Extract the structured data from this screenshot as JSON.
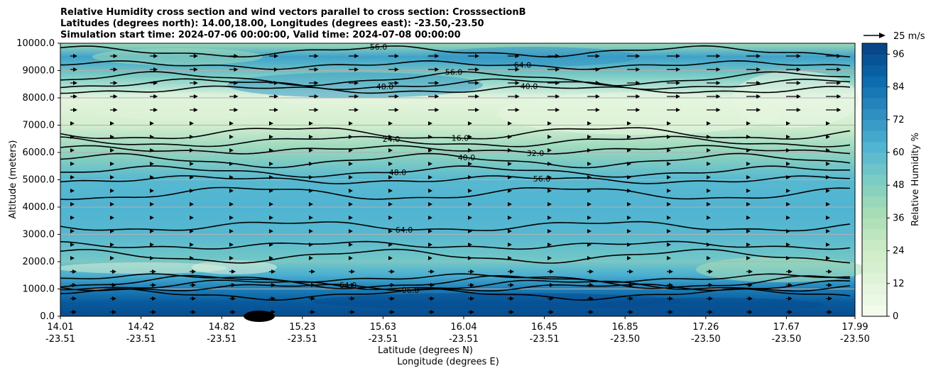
{
  "chart_data": {
    "type": "contour",
    "title_lines": [
      "Relative Humidity cross section and wind vectors parallel to cross section: CrosssectionB",
      "Latitudes (degrees north): 14.00,18.00, Longitudes (degrees east): -23.50,-23.50",
      "Simulation start time: 2024-07-06 00:00:00, Valid time: 2024-07-08 00:00:00"
    ],
    "ylabel": "Altitude (meters)",
    "xlabel_lat": "Latitude (degrees N)",
    "xlabel_lon": "Longitude (degrees E)",
    "ylim": [
      0,
      10000
    ],
    "xlim": [
      14.01,
      17.99
    ],
    "yticks": [
      "0.0",
      "1000.0",
      "2000.0",
      "3000.0",
      "4000.0",
      "5000.0",
      "6000.0",
      "7000.0",
      "8000.0",
      "9000.0",
      "10000.0"
    ],
    "xticks_lat": [
      "14.01",
      "14.42",
      "14.82",
      "15.23",
      "15.63",
      "16.04",
      "16.45",
      "16.85",
      "17.26",
      "17.67",
      "17.99"
    ],
    "xticks_lon": [
      "-23.51",
      "-23.51",
      "-23.51",
      "-23.51",
      "-23.51",
      "-23.51",
      "-23.51",
      "-23.50",
      "-23.50",
      "-23.50",
      "-23.50"
    ],
    "colorbar": {
      "label": "Relative Humidity %",
      "range": [
        0,
        100
      ],
      "ticks": [
        "0",
        "12",
        "24",
        "36",
        "48",
        "60",
        "72",
        "84",
        "96"
      ],
      "colormap": [
        "#f7fcf0",
        "#e0f3db",
        "#ccebc5",
        "#a8ddb5",
        "#7bccc4",
        "#4eb3d3",
        "#2b8cbe",
        "#0868ac",
        "#084081"
      ]
    },
    "quiver_key": "25 m/s",
    "humidity_profile": [
      {
        "altitude": 0,
        "rh": 96
      },
      {
        "altitude": 500,
        "rh": 92
      },
      {
        "altitude": 1000,
        "rh": 80
      },
      {
        "altitude": 1500,
        "rh": 64
      },
      {
        "altitude": 2000,
        "rh": 52
      },
      {
        "altitude": 3000,
        "rh": 60
      },
      {
        "altitude": 4000,
        "rh": 62
      },
      {
        "altitude": 5000,
        "rh": 60
      },
      {
        "altitude": 6000,
        "rh": 44
      },
      {
        "altitude": 7000,
        "rh": 20
      },
      {
        "altitude": 8000,
        "rh": 10
      },
      {
        "altitude": 8800,
        "rh": 50
      },
      {
        "altitude": 9500,
        "rh": 68
      },
      {
        "altitude": 10000,
        "rh": 40
      }
    ],
    "contour_levels": [
      {
        "altitude": 1050,
        "label": "64.0",
        "color": "#000000"
      },
      {
        "altitude": 1150,
        "label": "",
        "color": "#000000"
      },
      {
        "altitude": 1250,
        "label": "",
        "color": "#000000"
      },
      {
        "altitude": 1400,
        "label": "",
        "color": "#000000"
      },
      {
        "altitude": 800,
        "label": "96.0",
        "color": "#000000"
      },
      {
        "altitude": 2200,
        "label": "",
        "color": "#000000"
      },
      {
        "altitude": 2600,
        "label": "",
        "color": "#000000"
      },
      {
        "altitude": 3300,
        "label": "64.0",
        "color": "#000000"
      },
      {
        "altitude": 4500,
        "label": "",
        "color": "#000000"
      },
      {
        "altitude": 5000,
        "label": "56.0",
        "color": "#000000"
      },
      {
        "altitude": 5300,
        "label": "48.0",
        "color": "#000000"
      },
      {
        "altitude": 5700,
        "label": "40.0",
        "color": "#000000"
      },
      {
        "altitude": 6100,
        "label": "32.0",
        "color": "#000000"
      },
      {
        "altitude": 6400,
        "label": "24.0",
        "color": "#000000"
      },
      {
        "altitude": 6700,
        "label": "16.0",
        "color": "#000000"
      },
      {
        "altitude": 8300,
        "label": "40.0",
        "color": "#000000"
      },
      {
        "altitude": 8500,
        "label": "48.0",
        "color": "#000000"
      },
      {
        "altitude": 8700,
        "label": "56.0",
        "color": "#000000"
      },
      {
        "altitude": 9200,
        "label": "64.0",
        "color": "#000000"
      },
      {
        "altitude": 9700,
        "label": "56.0",
        "color": "#000000"
      }
    ],
    "wind": "arrows point toward increasing latitude (rightward) throughout, longer in upper levels",
    "grid": "horizontal at y ticks"
  }
}
